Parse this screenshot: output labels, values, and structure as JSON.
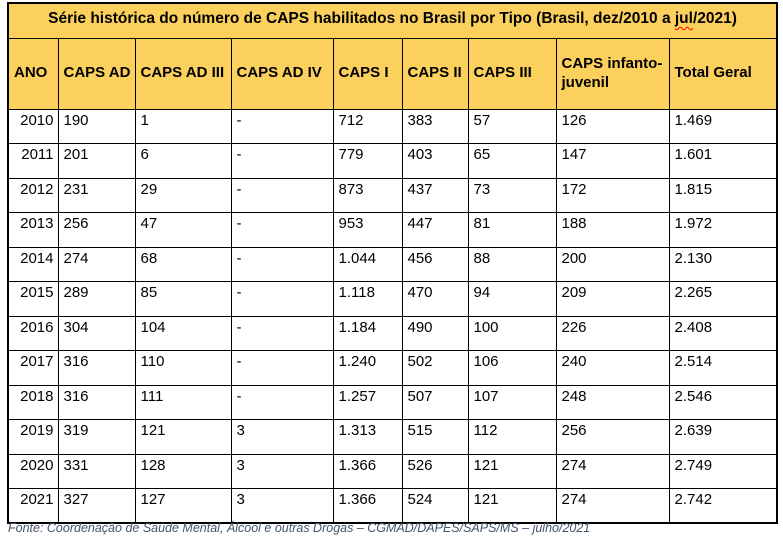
{
  "title": {
    "prefix": "Série histórica do número de CAPS habilitados no Brasil por Tipo (Brasil, dez/2010 a ",
    "misspelled_word": "jul",
    "suffix": "/2021)"
  },
  "table": {
    "columns": [
      "ANO",
      "CAPS AD",
      "CAPS AD III",
      "CAPS AD IV",
      "CAPS I",
      "CAPS II",
      "CAPS III",
      "CAPS infanto-juvenil",
      "Total Geral"
    ],
    "rows": [
      [
        "2010",
        "190",
        "1",
        "-",
        "712",
        "383",
        "57",
        "126",
        "1.469"
      ],
      [
        "2011",
        "201",
        "6",
        "-",
        "779",
        "403",
        "65",
        "147",
        "1.601"
      ],
      [
        "2012",
        "231",
        "29",
        "-",
        "873",
        "437",
        "73",
        "172",
        "1.815"
      ],
      [
        "2013",
        "256",
        "47",
        "-",
        "953",
        "447",
        "81",
        "188",
        "1.972"
      ],
      [
        "2014",
        "274",
        "68",
        "-",
        "1.044",
        "456",
        "88",
        "200",
        "2.130"
      ],
      [
        "2015",
        "289",
        "85",
        "-",
        "1.118",
        "470",
        "94",
        "209",
        "2.265"
      ],
      [
        "2016",
        "304",
        "104",
        "-",
        "1.184",
        "490",
        "100",
        "226",
        "2.408"
      ],
      [
        "2017",
        "316",
        "110",
        "-",
        "1.240",
        "502",
        "106",
        "240",
        "2.514"
      ],
      [
        "2018",
        "316",
        "111",
        "-",
        "1.257",
        "507",
        "107",
        "248",
        "2.546"
      ],
      [
        "2019",
        "319",
        "121",
        "3",
        "1.313",
        "515",
        "112",
        "256",
        "2.639"
      ],
      [
        "2020",
        "331",
        "128",
        "3",
        "1.366",
        "526",
        "121",
        "274",
        "2.749"
      ],
      [
        "2021",
        "327",
        "127",
        "3",
        "1.366",
        "524",
        "121",
        "274",
        "2.742"
      ]
    ]
  },
  "footer": {
    "text": "Fonte: Coordenação de Saúde Mental, Álcool e outras Drogas – CGMAD/DAPES/SAPS/MS – julho/2021"
  },
  "colors": {
    "header_background": "#fbd05c",
    "border": "#000000",
    "spellcheck_underline": "#ff0000",
    "footer_text": "#44546a"
  },
  "chart_data": {
    "type": "table",
    "title": "Série histórica do número de CAPS habilitados no Brasil por Tipo (Brasil, dez/2010 a jul/2021)",
    "categories": [
      "2010",
      "2011",
      "2012",
      "2013",
      "2014",
      "2015",
      "2016",
      "2017",
      "2018",
      "2019",
      "2020",
      "2021"
    ],
    "series": [
      {
        "name": "CAPS AD",
        "values": [
          190,
          201,
          231,
          256,
          274,
          289,
          304,
          316,
          316,
          319,
          331,
          327
        ]
      },
      {
        "name": "CAPS AD III",
        "values": [
          1,
          6,
          29,
          47,
          68,
          85,
          104,
          110,
          111,
          121,
          128,
          127
        ]
      },
      {
        "name": "CAPS AD IV",
        "values": [
          null,
          null,
          null,
          null,
          null,
          null,
          null,
          null,
          null,
          3,
          3,
          3
        ]
      },
      {
        "name": "CAPS I",
        "values": [
          712,
          779,
          873,
          953,
          1044,
          1118,
          1184,
          1240,
          1257,
          1313,
          1366,
          1366
        ]
      },
      {
        "name": "CAPS II",
        "values": [
          383,
          403,
          437,
          447,
          456,
          470,
          490,
          502,
          507,
          515,
          526,
          524
        ]
      },
      {
        "name": "CAPS III",
        "values": [
          57,
          65,
          73,
          81,
          88,
          94,
          100,
          106,
          107,
          112,
          121,
          121
        ]
      },
      {
        "name": "CAPS infanto-juvenil",
        "values": [
          126,
          147,
          172,
          188,
          200,
          209,
          226,
          240,
          248,
          256,
          274,
          274
        ]
      },
      {
        "name": "Total Geral",
        "values": [
          1469,
          1601,
          1815,
          1972,
          2130,
          2265,
          2408,
          2514,
          2546,
          2639,
          2749,
          2742
        ]
      }
    ]
  }
}
